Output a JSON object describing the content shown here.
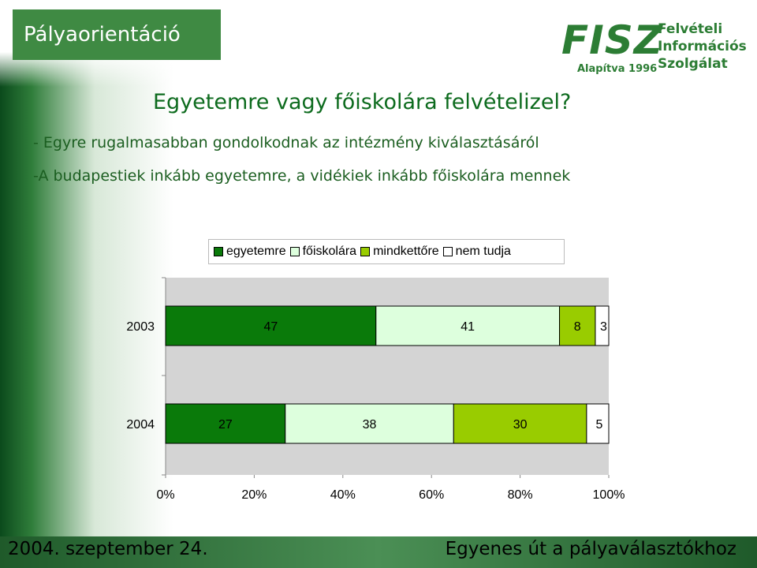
{
  "header": {
    "title": "Pályaorientáció",
    "logo": {
      "brand": "FISZ",
      "founded": "Alapítva 1996",
      "lines": [
        "Felvételi",
        "Információs",
        "Szolgálat"
      ]
    }
  },
  "headline": "Egyetemre vagy főiskolára felvételizel?",
  "bullets": [
    "- Egyre rugalmasabban gondolkodnak az intézmény kiválasztásáról",
    "-A budapestiek inkább egyetemre, a vidékiek inkább főiskolára mennek"
  ],
  "footer": {
    "left": "2004. szeptember 24.",
    "right": "Egyenes út a pályaválasztókhoz"
  },
  "chart_data": {
    "type": "bar",
    "orientation": "horizontal",
    "stacked": "percent",
    "categories": [
      "2003",
      "2004"
    ],
    "series": [
      {
        "name": "egyetemre",
        "values": [
          47,
          27
        ],
        "color": "#0a7a0a"
      },
      {
        "name": "főiskolára",
        "values": [
          41,
          38
        ],
        "color": "#ddffdd"
      },
      {
        "name": "mindkettőre",
        "values": [
          8,
          30
        ],
        "color": "#99cc00"
      },
      {
        "name": "nem tudja",
        "values": [
          3,
          5
        ],
        "color": "#ffffff"
      }
    ],
    "xticks": [
      "0%",
      "20%",
      "40%",
      "60%",
      "80%",
      "100%"
    ],
    "xlim": [
      0,
      100
    ],
    "legend": "top",
    "grid": false
  }
}
